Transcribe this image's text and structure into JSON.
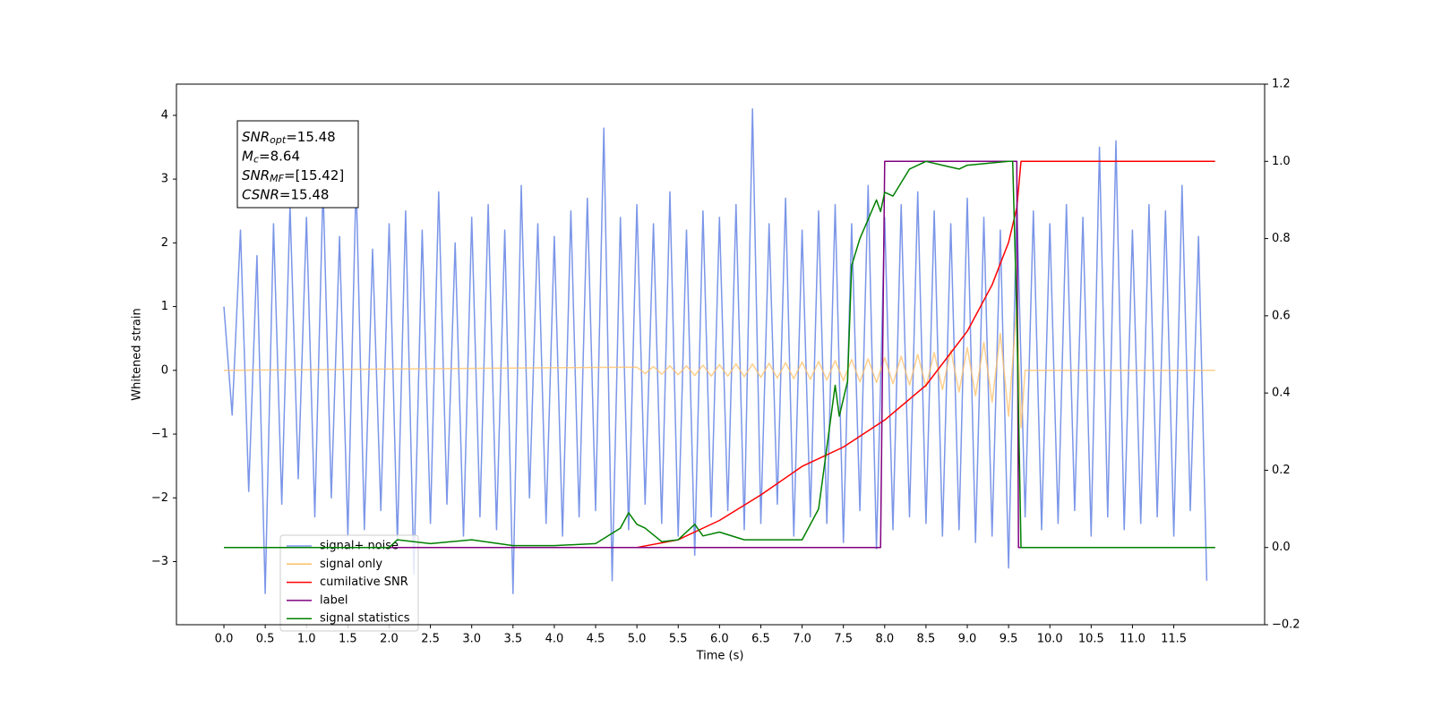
{
  "chart_data": {
    "type": "line",
    "xlabel": "Time (s)",
    "ylabel": "Whitened strain",
    "xlim": [
      -0.575,
      12.6
    ],
    "ylim": [
      -3.99,
      4.49
    ],
    "y2lim": [
      -0.2,
      1.2
    ],
    "xticks": [
      {
        "value": 0,
        "label": "0.0"
      },
      {
        "value": 0.5,
        "label": "0.5"
      },
      {
        "value": 1,
        "label": "1.0"
      },
      {
        "value": 1.5,
        "label": "1.5"
      },
      {
        "value": 2,
        "label": "2.0"
      },
      {
        "value": 2.5,
        "label": "2.5"
      },
      {
        "value": 3,
        "label": "3.0"
      },
      {
        "value": 3.5,
        "label": "3.5"
      },
      {
        "value": 4,
        "label": "4.0"
      },
      {
        "value": 4.5,
        "label": "4.5"
      },
      {
        "value": 5,
        "label": "5.0"
      },
      {
        "value": 5.5,
        "label": "5.5"
      },
      {
        "value": 6,
        "label": "6.0"
      },
      {
        "value": 6.5,
        "label": "6.5"
      },
      {
        "value": 7,
        "label": "7.0"
      },
      {
        "value": 7.5,
        "label": "7.5"
      },
      {
        "value": 8,
        "label": "8.0"
      },
      {
        "value": 8.5,
        "label": "8.5"
      },
      {
        "value": 9,
        "label": "9.0"
      },
      {
        "value": 9.5,
        "label": "9.5"
      },
      {
        "value": 10,
        "label": "10.0"
      },
      {
        "value": 10.5,
        "label": "10.5"
      },
      {
        "value": 11,
        "label": "11.0"
      },
      {
        "value": 11.5,
        "label": "11.5"
      }
    ],
    "yticks": [
      {
        "value": -3,
        "label": "−3"
      },
      {
        "value": -2,
        "label": "−2"
      },
      {
        "value": -1,
        "label": "−1"
      },
      0,
      1,
      2,
      3,
      4
    ],
    "y2ticks": [
      {
        "value": -0.2,
        "label": "−0.2"
      },
      {
        "value": 0,
        "label": "0.0"
      },
      {
        "value": 0.2,
        "label": "0.2"
      },
      {
        "value": 0.4,
        "label": "0.4"
      },
      {
        "value": 0.6,
        "label": "0.6"
      },
      {
        "value": 0.8,
        "label": "0.8"
      },
      {
        "value": 1,
        "label": "1.0"
      },
      {
        "value": 1.2,
        "label": "1.2"
      }
    ],
    "annotation": [
      {
        "symbol": "SNR",
        "subscript": "opt",
        "text": "=15.48"
      },
      {
        "symbol": "M",
        "subscript": "c",
        "text": "=8.64"
      },
      {
        "symbol": "SNR",
        "subscript": "MF",
        "text": "=[15.42]"
      },
      {
        "symbol": "CSNR",
        "text": "=15.48"
      }
    ],
    "series": [
      {
        "name": "signal+ noise",
        "color": "#7b96e8",
        "x": [
          0.0,
          0.1,
          0.2,
          0.3,
          0.4,
          0.5,
          0.6,
          0.7,
          0.8,
          0.9,
          1.0,
          1.1,
          1.2,
          1.3,
          1.4,
          1.5,
          1.6,
          1.7,
          1.8,
          1.9,
          2.0,
          2.1,
          2.2,
          2.3,
          2.4,
          2.5,
          2.6,
          2.7,
          2.8,
          2.9,
          3.0,
          3.1,
          3.2,
          3.3,
          3.4,
          3.5,
          3.6,
          3.7,
          3.8,
          3.9,
          4.0,
          4.1,
          4.2,
          4.3,
          4.4,
          4.5,
          4.6,
          4.7,
          4.8,
          4.9,
          5.0,
          5.1,
          5.2,
          5.3,
          5.4,
          5.5,
          5.6,
          5.7,
          5.8,
          5.9,
          6.0,
          6.1,
          6.2,
          6.3,
          6.4,
          6.5,
          6.6,
          6.7,
          6.8,
          6.9,
          7.0,
          7.1,
          7.2,
          7.3,
          7.4,
          7.5,
          7.6,
          7.7,
          7.8,
          7.9,
          8.0,
          8.1,
          8.2,
          8.3,
          8.4,
          8.5,
          8.6,
          8.7,
          8.8,
          8.9,
          9.0,
          9.1,
          9.2,
          9.3,
          9.4,
          9.5,
          9.6,
          9.7,
          9.8,
          9.9,
          10.0,
          10.1,
          10.2,
          10.3,
          10.4,
          10.5,
          10.6,
          10.7,
          10.8,
          10.9,
          11.0,
          11.1,
          11.2,
          11.3,
          11.4,
          11.5,
          11.6,
          11.7,
          11.8,
          11.9
        ],
        "values": [
          1.0,
          -0.7,
          2.2,
          -1.9,
          1.8,
          -3.5,
          2.3,
          -2.1,
          2.6,
          -1.7,
          2.4,
          -2.3,
          2.9,
          -2.0,
          2.1,
          -2.6,
          3.0,
          -2.5,
          1.9,
          -2.2,
          2.3,
          -2.7,
          2.5,
          -3.2,
          2.2,
          -2.4,
          2.8,
          -2.1,
          2.0,
          -2.6,
          2.4,
          -2.3,
          2.6,
          -2.5,
          2.2,
          -3.5,
          2.9,
          -2.0,
          2.3,
          -2.4,
          2.1,
          -2.6,
          2.5,
          -2.3,
          2.7,
          -2.2,
          3.8,
          -3.3,
          2.4,
          -2.5,
          2.6,
          -2.1,
          2.3,
          -2.4,
          2.8,
          -2.6,
          2.2,
          -2.9,
          2.5,
          -2.3,
          2.4,
          -2.2,
          2.6,
          -2.5,
          4.1,
          -2.4,
          2.3,
          -2.1,
          2.7,
          -2.6,
          2.2,
          -2.3,
          2.5,
          -2.4,
          2.6,
          -2.7,
          2.3,
          -2.2,
          2.9,
          -2.8,
          2.4,
          -2.5,
          2.6,
          -2.3,
          2.8,
          -2.4,
          2.5,
          -2.6,
          2.3,
          -2.5,
          2.7,
          -2.7,
          2.4,
          -2.6,
          2.2,
          -3.1,
          2.6,
          -2.3,
          2.5,
          -2.5,
          2.3,
          -2.4,
          2.6,
          -2.2,
          2.4,
          -2.6,
          3.5,
          -2.3,
          3.6,
          -2.5,
          2.2,
          -2.4,
          2.6,
          -2.3,
          2.5,
          -2.6,
          2.9,
          -2.2,
          2.1,
          -3.3
        ]
      },
      {
        "name": "signal only",
        "color": "#ffbf66",
        "x": [
          0,
          5.0,
          5.1,
          5.2,
          5.3,
          5.4,
          5.5,
          5.6,
          5.7,
          5.8,
          5.9,
          6.0,
          6.1,
          6.2,
          6.3,
          6.4,
          6.5,
          6.6,
          6.7,
          6.8,
          6.9,
          7.0,
          7.1,
          7.2,
          7.3,
          7.4,
          7.5,
          7.6,
          7.7,
          7.8,
          7.9,
          8.0,
          8.1,
          8.2,
          8.3,
          8.4,
          8.5,
          8.6,
          8.7,
          8.8,
          8.9,
          9.0,
          9.1,
          9.2,
          9.3,
          9.4,
          9.5,
          9.6,
          9.65,
          9.7,
          12.0
        ],
        "values": [
          0,
          0.05,
          -0.05,
          0.06,
          -0.06,
          0.07,
          -0.07,
          0.07,
          -0.08,
          0.08,
          -0.09,
          0.09,
          -0.09,
          0.1,
          -0.1,
          0.1,
          -0.11,
          0.11,
          -0.12,
          0.12,
          -0.13,
          0.13,
          -0.14,
          0.14,
          -0.15,
          0.15,
          -0.16,
          0.17,
          -0.18,
          0.18,
          -0.19,
          0.2,
          -0.21,
          0.22,
          -0.23,
          0.25,
          -0.26,
          0.28,
          -0.3,
          0.32,
          -0.34,
          0.36,
          -0.4,
          0.44,
          -0.5,
          0.58,
          -0.72,
          1.0,
          -0.9,
          0,
          0
        ]
      },
      {
        "name": "cumilative SNR",
        "color": "#ff0000",
        "axis": "y2",
        "x": [
          0,
          5.0,
          5.5,
          6.0,
          6.5,
          7.0,
          7.5,
          8.0,
          8.5,
          9.0,
          9.3,
          9.5,
          9.6,
          9.65,
          12.0
        ],
        "values": [
          0,
          0,
          0.02,
          0.07,
          0.136,
          0.21,
          0.26,
          0.33,
          0.42,
          0.56,
          0.68,
          0.79,
          0.88,
          1.0,
          1.0
        ]
      },
      {
        "name": "label",
        "color": "#800080",
        "axis": "y2",
        "x": [
          0,
          7.95,
          8.0,
          9.6,
          9.62,
          12.0
        ],
        "values": [
          0,
          0,
          1,
          1,
          0,
          0
        ]
      },
      {
        "name": "signal statistics",
        "color": "#008000",
        "axis": "y2",
        "x": [
          0,
          2.0,
          2.1,
          2.5,
          3.0,
          3.5,
          4.0,
          4.5,
          4.8,
          4.9,
          5.0,
          5.1,
          5.3,
          5.5,
          5.7,
          5.8,
          6.0,
          6.3,
          6.6,
          7.0,
          7.2,
          7.4,
          7.45,
          7.55,
          7.6,
          7.7,
          7.9,
          7.95,
          8.0,
          8.1,
          8.3,
          8.5,
          8.7,
          8.9,
          9.0,
          9.5,
          9.55,
          9.6,
          9.65,
          12.0
        ],
        "values": [
          0,
          0,
          0.02,
          0.01,
          0.02,
          0.005,
          0.005,
          0.01,
          0.05,
          0.09,
          0.06,
          0.05,
          0.015,
          0.02,
          0.06,
          0.03,
          0.04,
          0.02,
          0.02,
          0.02,
          0.1,
          0.42,
          0.34,
          0.43,
          0.73,
          0.8,
          0.9,
          0.87,
          0.92,
          0.91,
          0.98,
          1.0,
          0.99,
          0.98,
          0.99,
          1.0,
          1.0,
          0.6,
          0,
          0
        ]
      }
    ]
  }
}
